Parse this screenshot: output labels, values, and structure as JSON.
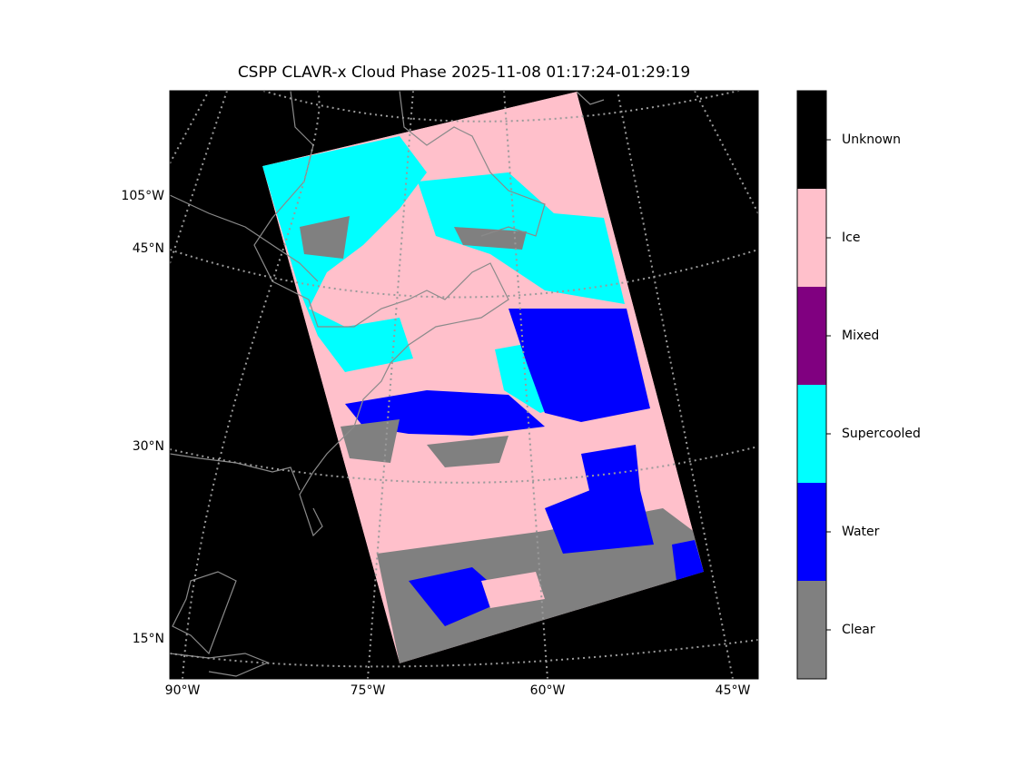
{
  "title": "CSPP CLAVR-x Cloud Phase 2025-11-08 01:17:24-01:29:19",
  "map": {
    "lon_labels": [
      "90°W",
      "75°W",
      "60°W",
      "45°W"
    ],
    "lat_labels": [
      "105°W",
      "45°N",
      "30°N",
      "15°N"
    ]
  },
  "colorbar": {
    "classes": [
      {
        "name": "Unknown",
        "color": "#000000"
      },
      {
        "name": "Ice",
        "color": "#ffc0cb"
      },
      {
        "name": "Mixed",
        "color": "#800080"
      },
      {
        "name": "Supercooled",
        "color": "#00ffff"
      },
      {
        "name": "Water",
        "color": "#0000ff"
      },
      {
        "name": "Clear",
        "color": "#808080"
      }
    ]
  }
}
